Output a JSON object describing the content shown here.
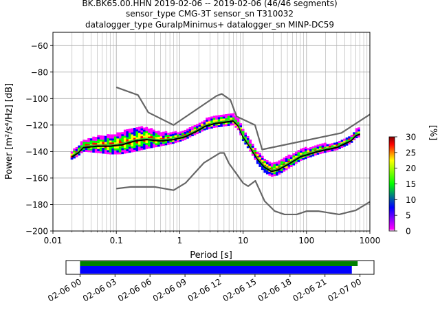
{
  "chart_data": {
    "type": "heatmap",
    "title_lines": [
      "BK.BK65.00.HHN   2019-02-06 -- 2019-02-06  (46/46 segments)",
      "sensor_type CMG-3T sensor_sn T310032",
      "datalogger_type GuralpMinimus+ datalogger_sn MINP-DC59"
    ],
    "xlabel": "Period [s]",
    "ylabel": "Power [m²/s⁴/Hz] [dB]",
    "x_scale": "log",
    "xlim": [
      0.01,
      1000
    ],
    "ylim": [
      -200,
      -50
    ],
    "x_ticks": [
      {
        "v": 0.01,
        "label": "0.01"
      },
      {
        "v": 0.1,
        "label": "0.1"
      },
      {
        "v": 1,
        "label": "1"
      },
      {
        "v": 10,
        "label": "10"
      },
      {
        "v": 100,
        "label": "100"
      },
      {
        "v": 1000,
        "label": "1000"
      }
    ],
    "y_ticks": [
      {
        "v": -60,
        "label": "−60"
      },
      {
        "v": -80,
        "label": "−80"
      },
      {
        "v": -100,
        "label": "−100"
      },
      {
        "v": -120,
        "label": "−120"
      },
      {
        "v": -140,
        "label": "−140"
      },
      {
        "v": -160,
        "label": "−160"
      },
      {
        "v": -180,
        "label": "−180"
      },
      {
        "v": -200,
        "label": "−200"
      }
    ],
    "grid": true,
    "colorbar": {
      "label": "[%]",
      "range": [
        0,
        30
      ],
      "ticks": [
        {
          "v": 0,
          "label": "0"
        },
        {
          "v": 5,
          "label": "5"
        },
        {
          "v": 10,
          "label": "10"
        },
        {
          "v": 15,
          "label": "15"
        },
        {
          "v": 20,
          "label": "20"
        },
        {
          "v": 25,
          "label": "25"
        },
        {
          "v": 30,
          "label": "30"
        }
      ],
      "colors": [
        "#ffffff",
        "#ff00ff",
        "#0000ff",
        "#00ff00",
        "#ffff00",
        "#ff0000",
        "#800000"
      ]
    },
    "noise_models": {
      "high": [
        [
          0.1,
          -91.5
        ],
        [
          0.22,
          -97.4
        ],
        [
          0.32,
          -110.5
        ],
        [
          0.8,
          -120
        ],
        [
          3.8,
          -98
        ],
        [
          4.6,
          -96.5
        ],
        [
          6.3,
          -101
        ],
        [
          7.9,
          -113.5
        ],
        [
          15.4,
          -120
        ],
        [
          20,
          -138.5
        ],
        [
          354.8,
          -126
        ],
        [
          1000,
          -112
        ]
      ],
      "low": [
        [
          0.1,
          -168
        ],
        [
          0.17,
          -166.7
        ],
        [
          0.4,
          -166.7
        ],
        [
          0.8,
          -169.2
        ],
        [
          1.24,
          -163.7
        ],
        [
          2.4,
          -148.6
        ],
        [
          4.3,
          -141.1
        ],
        [
          5,
          -141.1
        ],
        [
          6,
          -149
        ],
        [
          10,
          -163.8
        ],
        [
          12,
          -166.2
        ],
        [
          15.6,
          -162.1
        ],
        [
          21.9,
          -177.5
        ],
        [
          31.6,
          -185
        ],
        [
          45,
          -187.5
        ],
        [
          70,
          -187.5
        ],
        [
          101,
          -185
        ],
        [
          154,
          -185
        ],
        [
          328,
          -187.5
        ],
        [
          600,
          -184.4
        ],
        [
          1000,
          -178
        ]
      ]
    },
    "psd_curves": {
      "mean": [
        [
          0.02,
          -143
        ],
        [
          0.025,
          -140
        ],
        [
          0.03,
          -136
        ],
        [
          0.05,
          -135
        ],
        [
          0.08,
          -135
        ],
        [
          0.12,
          -134
        ],
        [
          0.2,
          -131
        ],
        [
          0.3,
          -130
        ],
        [
          0.5,
          -131
        ],
        [
          0.8,
          -130
        ],
        [
          1.2,
          -128
        ],
        [
          1.8,
          -124
        ],
        [
          2.5,
          -120
        ],
        [
          3.5,
          -118
        ],
        [
          5,
          -117
        ],
        [
          7,
          -116
        ],
        [
          8.5,
          -120
        ],
        [
          10,
          -128
        ],
        [
          13,
          -136
        ],
        [
          17,
          -145
        ],
        [
          22,
          -151
        ],
        [
          28,
          -154
        ],
        [
          35,
          -153
        ],
        [
          50,
          -149
        ],
        [
          80,
          -143
        ],
        [
          150,
          -139
        ],
        [
          300,
          -136
        ],
        [
          500,
          -131
        ],
        [
          600,
          -127
        ],
        [
          700,
          -126
        ]
      ],
      "mode": [
        [
          0.02,
          -144
        ],
        [
          0.025,
          -141
        ],
        [
          0.03,
          -137
        ],
        [
          0.05,
          -136
        ],
        [
          0.08,
          -136
        ],
        [
          0.12,
          -135
        ],
        [
          0.2,
          -132
        ],
        [
          0.3,
          -131
        ],
        [
          0.5,
          -132
        ],
        [
          0.8,
          -131
        ],
        [
          1.2,
          -129
        ],
        [
          1.8,
          -125
        ],
        [
          2.5,
          -121
        ],
        [
          3.5,
          -119
        ],
        [
          5,
          -118
        ],
        [
          7,
          -117
        ],
        [
          8.5,
          -121
        ],
        [
          10,
          -129
        ],
        [
          13,
          -137
        ],
        [
          17,
          -146
        ],
        [
          22,
          -152
        ],
        [
          28,
          -155
        ],
        [
          35,
          -154
        ],
        [
          50,
          -150
        ],
        [
          80,
          -144
        ],
        [
          150,
          -140
        ],
        [
          300,
          -137
        ],
        [
          500,
          -132
        ],
        [
          600,
          -128
        ],
        [
          700,
          -127
        ]
      ]
    },
    "spread": [
      [
        0.02,
        3
      ],
      [
        0.03,
        4
      ],
      [
        0.05,
        6
      ],
      [
        0.12,
        8
      ],
      [
        0.2,
        9
      ],
      [
        0.3,
        8
      ],
      [
        0.5,
        5
      ],
      [
        0.8,
        4
      ],
      [
        1.5,
        3
      ],
      [
        3,
        4
      ],
      [
        7,
        4
      ],
      [
        9,
        4
      ],
      [
        13,
        4
      ],
      [
        22,
        5
      ],
      [
        35,
        5
      ],
      [
        80,
        4
      ],
      [
        200,
        3
      ],
      [
        400,
        3
      ],
      [
        700,
        3
      ]
    ],
    "x_range": [
      0.019,
      700
    ]
  },
  "timeline": {
    "tick_labels": [
      "02-06 00",
      "02-06 03",
      "02-06 06",
      "02-06 09",
      "02-06 12",
      "02-06 15",
      "02-06 18",
      "02-06 21",
      "02-07 00"
    ],
    "range_hours": [
      -1.2,
      25.2
    ],
    "green_bar": [
      0,
      23.8
    ],
    "blue_bar": [
      0,
      23.3
    ],
    "green_color": "#008000",
    "blue_color": "#0000ff"
  }
}
